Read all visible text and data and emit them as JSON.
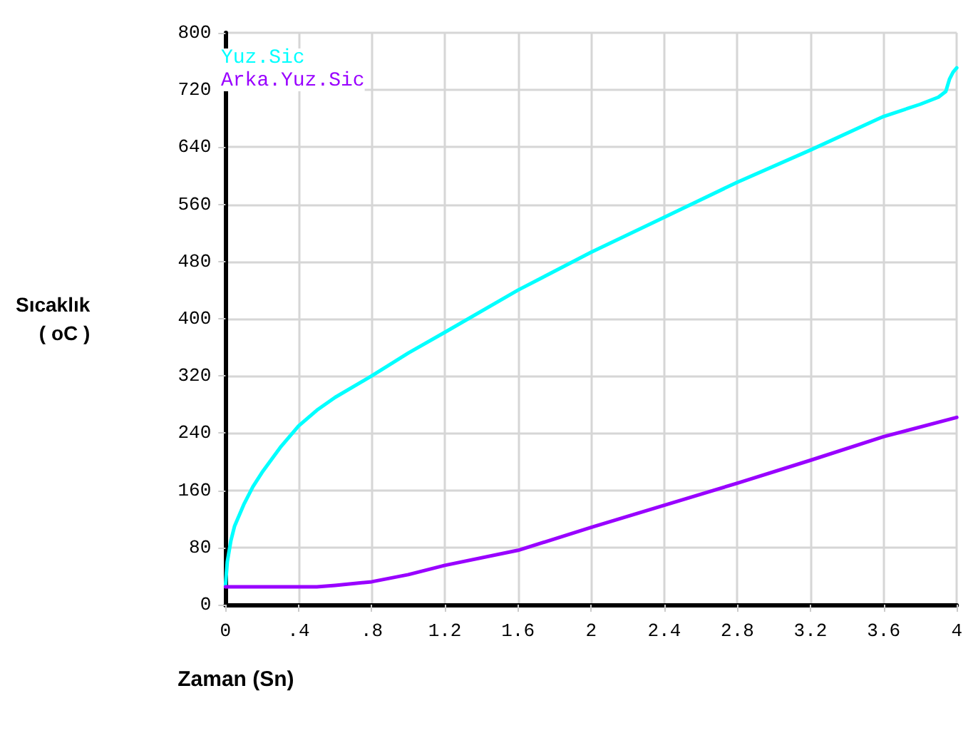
{
  "chart_data": {
    "type": "line",
    "xlabel": "Zaman (Sn)",
    "ylabel": "Sıcaklık\n( oC )",
    "xlim": [
      0,
      4
    ],
    "ylim": [
      0,
      800
    ],
    "xticks": [
      0,
      {
        "value": 0.4,
        "label": ".4"
      },
      {
        "value": 0.8,
        "label": ".8"
      },
      1.2,
      1.6,
      2,
      2.4,
      2.8,
      3.2,
      3.6,
      4
    ],
    "yticks": [
      0,
      80,
      160,
      240,
      320,
      400,
      480,
      560,
      640,
      720,
      800
    ],
    "grid": true,
    "legend": "top left",
    "marker": "none",
    "line_style": "solid",
    "series": [
      {
        "name": "Yuz.Sic",
        "color": "#00ffff",
        "x": [
          0,
          0.01,
          0.03,
          0.05,
          0.1,
          0.15,
          0.2,
          0.3,
          0.4,
          0.5,
          0.6,
          0.8,
          1.0,
          1.2,
          1.6,
          2.0,
          2.4,
          2.8,
          3.2,
          3.6,
          3.8,
          3.9,
          3.94,
          3.96,
          3.98,
          4.0
        ],
        "values": [
          27,
          60,
          90,
          110,
          140,
          165,
          185,
          220,
          250,
          272,
          290,
          320,
          352,
          381,
          440,
          493,
          542,
          591,
          636,
          683,
          700,
          710,
          718,
          735,
          745,
          751
        ]
      },
      {
        "name": "Arka.Yuz.Sic",
        "color": "#9900ff",
        "x": [
          0,
          0.2,
          0.4,
          0.5,
          0.6,
          0.8,
          1.0,
          1.2,
          1.6,
          2.0,
          2.4,
          2.8,
          3.2,
          3.6,
          4.0
        ],
        "values": [
          25,
          25,
          25,
          25,
          27,
          32,
          42,
          55,
          76,
          108,
          139,
          170,
          202,
          235,
          262
        ]
      }
    ]
  }
}
